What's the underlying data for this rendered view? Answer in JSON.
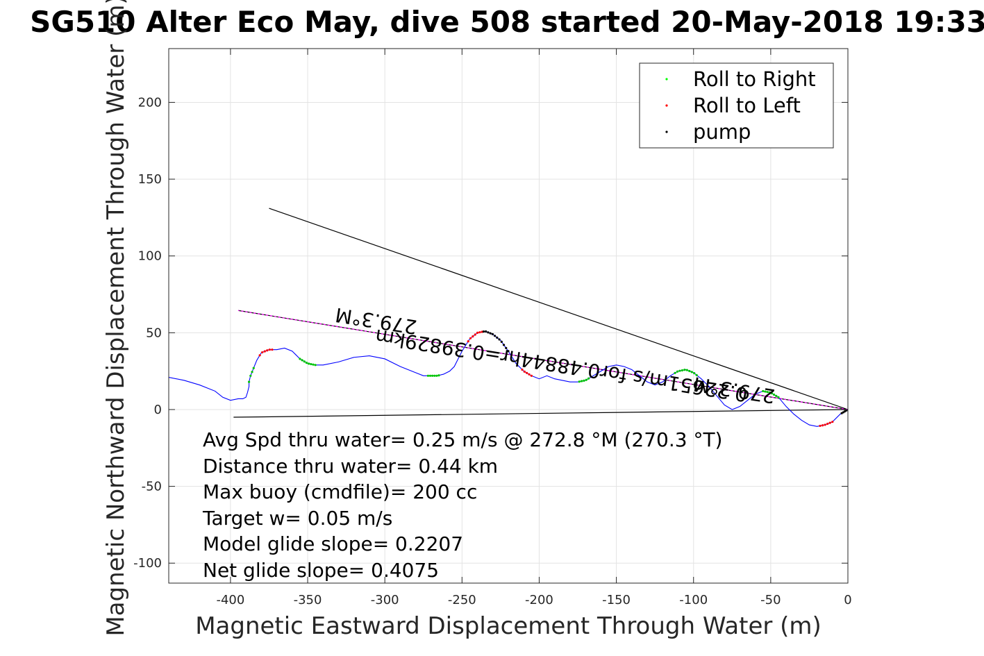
{
  "chart_data": {
    "type": "line",
    "title": "SG510 Alter Eco May, dive 508 started 20-May-2018 19:33",
    "xlabel": "Magnetic Eastward Displacement Through Water (m)",
    "ylabel": "Magnetic Northward Displacement Through Water (m)",
    "xlim": [
      -440,
      0
    ],
    "ylim": [
      -113,
      235
    ],
    "xticks": [
      -400,
      -350,
      -300,
      -250,
      -200,
      -150,
      -100,
      -50,
      0
    ],
    "yticks": [
      -100,
      -50,
      0,
      50,
      100,
      150,
      200
    ],
    "grid": true,
    "legend": {
      "placement": "top-right",
      "entries": [
        {
          "label": "Roll to Right",
          "color": "#00ff00"
        },
        {
          "label": "Roll to Left",
          "color": "#ff0000"
        },
        {
          "label": "pump",
          "color": "#000000"
        }
      ]
    },
    "track": {
      "color": "#0000ff",
      "x": [
        0,
        -5,
        -10,
        -15,
        -20,
        -25,
        -30,
        -35,
        -40,
        -45,
        -50,
        -55,
        -60,
        -65,
        -70,
        -75,
        -80,
        -85,
        -90,
        -95,
        -100,
        -105,
        -110,
        -115,
        -120,
        -125,
        -130,
        -135,
        -140,
        -145,
        -150,
        -155,
        -160,
        -165,
        -170,
        -175,
        -180,
        -185,
        -190,
        -195,
        -200,
        -205,
        -210,
        -215,
        -220,
        -225,
        -230,
        -235,
        -240,
        -245,
        -250,
        -253,
        -255,
        -258,
        -262,
        -266,
        -270,
        -275,
        -280,
        -290,
        -300,
        -310,
        -320,
        -330,
        -340,
        -345,
        -350,
        -355,
        -358,
        -360,
        -365,
        -370,
        -375,
        -380,
        -383,
        -385,
        -387,
        -388,
        -388,
        -389,
        -390,
        -392,
        -395,
        -400,
        -405,
        -410,
        -420,
        -430,
        -440
      ],
      "y": [
        0,
        -3,
        -8,
        -10,
        -11,
        -10,
        -7,
        -3,
        2,
        8,
        11,
        12,
        10,
        6,
        2,
        0,
        3,
        9,
        15,
        20,
        24,
        26,
        25,
        22,
        18,
        16,
        18,
        22,
        26,
        28,
        29,
        28,
        25,
        22,
        19,
        18,
        18,
        19,
        20,
        22,
        20,
        22,
        25,
        30,
        38,
        45,
        49,
        51,
        50,
        46,
        38,
        32,
        28,
        25,
        23,
        22,
        22,
        22,
        24,
        28,
        33,
        35,
        34,
        31,
        29,
        29,
        30,
        33,
        36,
        38,
        40,
        39,
        39,
        37,
        32,
        27,
        22,
        18,
        15,
        11,
        8,
        7,
        7,
        6,
        8,
        12,
        16,
        19,
        21
      ]
    },
    "marker_segments": {
      "roll_to_right": [
        [
          -385,
          -388
        ],
        [
          -345,
          -355
        ],
        [
          -265,
          -272
        ],
        [
          -168,
          -174
        ],
        [
          -98,
          -112
        ],
        [
          -45,
          -55
        ]
      ],
      "roll_to_left": [
        [
          -373,
          -381
        ],
        [
          -205,
          -211
        ],
        [
          -10,
          -18
        ],
        [
          -237,
          -246
        ]
      ],
      "pump": [
        [
          -220,
          -236
        ],
        [
          -1,
          -4
        ]
      ]
    },
    "reference_lines": [
      {
        "x": [
          0,
          -375
        ],
        "y": [
          0,
          131
        ]
      },
      {
        "x": [
          0,
          -398
        ],
        "y": [
          0,
          -5
        ]
      },
      {
        "x": [
          0,
          -395
        ],
        "y": [
          0,
          64.5
        ],
        "color": "#ff00ff"
      }
    ],
    "line_labels": [
      {
        "text": "279.3°M",
        "x": -305,
        "y": 62,
        "rotate": 189
      },
      {
        "text": "0.22651m/s for0.48844hr=0.39829km",
        "x": -185,
        "y": 33,
        "rotate": 189
      },
      {
        "text": "279.3°M",
        "x": -73,
        "y": 17,
        "rotate": 189
      }
    ],
    "annotations": [
      "Avg Spd thru water=  0.25 m/s @ 272.8 °M (270.3 °T)",
      "Distance thru water=  0.44 km",
      "Max buoy (cmdfile)= 200 cc",
      "Target w= 0.05 m/s",
      "Model glide slope= 0.2207",
      "Net glide slope= 0.4075"
    ]
  }
}
